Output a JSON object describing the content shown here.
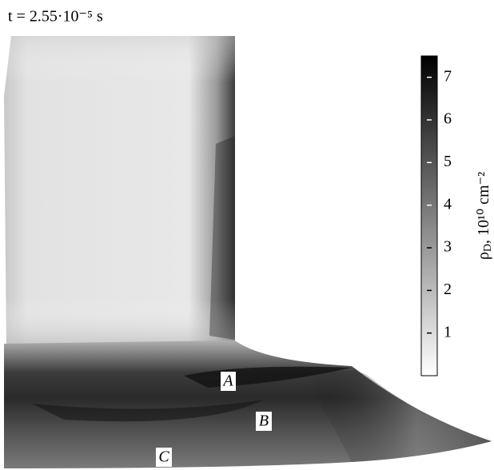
{
  "chart_data": {
    "type": "heatmap",
    "title": "t = 2.55·10⁻⁵ s",
    "colorbar_label": {
      "symbol": "ρ",
      "subscript": "D",
      "rest": ", 10¹⁰ cm⁻²"
    },
    "ylim": [
      0,
      7.5
    ],
    "yticks": [
      1,
      2,
      3,
      4,
      5,
      6,
      7
    ],
    "colormap": [
      "#ffffff",
      "#000000"
    ],
    "annotations": [
      "A",
      "B",
      "C"
    ]
  }
}
